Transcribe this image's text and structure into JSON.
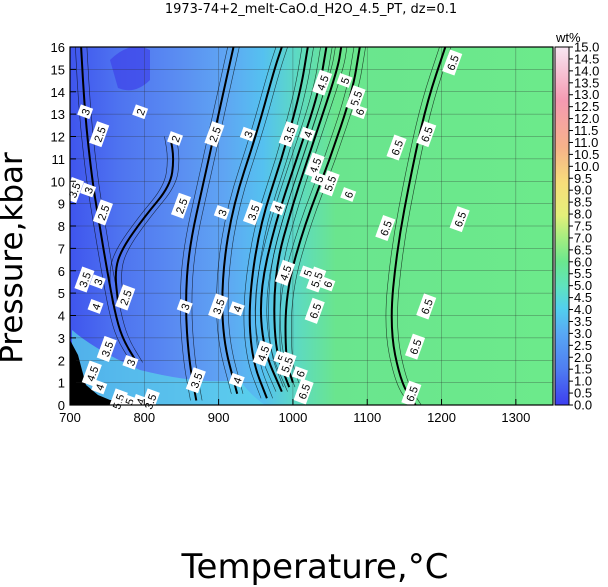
{
  "chart_data": {
    "type": "heatmap",
    "title": "1973-74+2_melt-CaO.d_H2O_4.5_PT, dz=0.1",
    "xlabel": "Temperature,°C",
    "ylabel": "Pressure,kbar",
    "xlim": [
      700,
      1350
    ],
    "ylim": [
      0,
      16
    ],
    "x_ticks": [
      700,
      800,
      900,
      1000,
      1100,
      1200,
      1300
    ],
    "y_ticks": [
      0,
      1,
      2,
      3,
      4,
      5,
      6,
      7,
      8,
      9,
      10,
      11,
      12,
      13,
      14,
      15,
      16
    ],
    "grid": true,
    "colorbar": {
      "label": "wt%",
      "range": [
        0.0,
        15.0
      ],
      "ticks": [
        "0.0",
        "0.5",
        "1.0",
        "1.5",
        "2.0",
        "2.5",
        "3.0",
        "3.5",
        "4.0",
        "4.5",
        "5.0",
        "5.5",
        "6.0",
        "6.5",
        "7.0",
        "7.5",
        "8.0",
        "8.5",
        "9.0",
        "9.5",
        "10.0",
        "10.5",
        "11.0",
        "11.5",
        "12.0",
        "12.5",
        "13.0",
        "13.5",
        "14.0",
        "14.5",
        "15.0"
      ],
      "placement": "right"
    },
    "contours": [
      {
        "level": 2.5,
        "points": [
          [
            765,
            4.5
          ],
          [
            760,
            6
          ],
          [
            770,
            7
          ],
          [
            800,
            8.4
          ],
          [
            835,
            9.8
          ],
          [
            840,
            11
          ],
          [
            835,
            12
          ]
        ]
      },
      {
        "level": 3,
        "points": [
          [
            790,
            1.9
          ],
          [
            770,
            3
          ],
          [
            760,
            4.2
          ],
          [
            750,
            6
          ],
          [
            740,
            8
          ],
          [
            730,
            10
          ],
          [
            720,
            13
          ],
          [
            715,
            16
          ]
        ]
      },
      {
        "level": 3.5,
        "points": [
          [
            870,
            0.2
          ],
          [
            860,
            2
          ],
          [
            855,
            4.5
          ],
          [
            860,
            7
          ],
          [
            880,
            10
          ],
          [
            900,
            13
          ],
          [
            920,
            16
          ]
        ]
      },
      {
        "level": 4,
        "points": [
          [
            925,
            0.5
          ],
          [
            905,
            3
          ],
          [
            905,
            6
          ],
          [
            920,
            9
          ],
          [
            950,
            12
          ],
          [
            975,
            15
          ],
          [
            985,
            16
          ]
        ]
      },
      {
        "level": 4.5,
        "points": [
          [
            965,
            0.3
          ],
          [
            945,
            2
          ],
          [
            940,
            4.5
          ],
          [
            955,
            8
          ],
          [
            985,
            11
          ],
          [
            1010,
            14
          ],
          [
            1020,
            16
          ]
        ]
      },
      {
        "level": 5,
        "points": [
          [
            985,
            0.6
          ],
          [
            960,
            2.5
          ],
          [
            955,
            5
          ],
          [
            975,
            8
          ],
          [
            1005,
            11
          ],
          [
            1035,
            14
          ],
          [
            1045,
            16
          ]
        ]
      },
      {
        "level": 5.5,
        "points": [
          [
            995,
            0.8
          ],
          [
            975,
            2.5
          ],
          [
            975,
            6
          ],
          [
            1000,
            9
          ],
          [
            1030,
            12
          ],
          [
            1060,
            15
          ],
          [
            1065,
            16
          ]
        ]
      },
      {
        "level": 6,
        "points": [
          [
            1000,
            1
          ],
          [
            990,
            2
          ],
          [
            990,
            5
          ],
          [
            1015,
            8
          ],
          [
            1050,
            11
          ],
          [
            1080,
            14
          ],
          [
            1090,
            16
          ]
        ]
      },
      {
        "level": 6.5,
        "points": [
          [
            1165,
            0
          ],
          [
            1145,
            1
          ],
          [
            1130,
            3.5
          ],
          [
            1140,
            7
          ],
          [
            1160,
            10.5
          ],
          [
            1180,
            13.5
          ],
          [
            1205,
            16
          ]
        ]
      }
    ],
    "contour_labels": [
      {
        "text": "3",
        "x": 721,
        "y": 13.1
      },
      {
        "text": "2.5",
        "x": 740,
        "y": 12.1
      },
      {
        "text": "2",
        "x": 795,
        "y": 13.1
      },
      {
        "text": "2",
        "x": 842,
        "y": 11.9
      },
      {
        "text": "2.5",
        "x": 895,
        "y": 12.1
      },
      {
        "text": "3",
        "x": 940,
        "y": 12.1
      },
      {
        "text": "3.5",
        "x": 995,
        "y": 12.1
      },
      {
        "text": "4",
        "x": 1020,
        "y": 12.1
      },
      {
        "text": "4.5",
        "x": 1040,
        "y": 14.4
      },
      {
        "text": "5",
        "x": 1070,
        "y": 14.5
      },
      {
        "text": "5.5",
        "x": 1085,
        "y": 13.7
      },
      {
        "text": "6",
        "x": 1090,
        "y": 13.1
      },
      {
        "text": "6.5",
        "x": 1215,
        "y": 15.3
      },
      {
        "text": "6.5",
        "x": 1180,
        "y": 12.1
      },
      {
        "text": "3.5",
        "x": 706,
        "y": 9.6
      },
      {
        "text": "3",
        "x": 725,
        "y": 9.6
      },
      {
        "text": "2.5",
        "x": 745,
        "y": 8.6
      },
      {
        "text": "2.5",
        "x": 850,
        "y": 8.9
      },
      {
        "text": "3",
        "x": 905,
        "y": 8.6
      },
      {
        "text": "3.5",
        "x": 947,
        "y": 8.6
      },
      {
        "text": "4",
        "x": 980,
        "y": 8.8
      },
      {
        "text": "4.5",
        "x": 1030,
        "y": 10.7
      },
      {
        "text": "5",
        "x": 1035,
        "y": 10.1
      },
      {
        "text": "5.5",
        "x": 1050,
        "y": 9.9
      },
      {
        "text": "6",
        "x": 1075,
        "y": 9.4
      },
      {
        "text": "6.5",
        "x": 1140,
        "y": 11.5
      },
      {
        "text": "6.5",
        "x": 1125,
        "y": 7.9
      },
      {
        "text": "6.5",
        "x": 1225,
        "y": 8.3
      },
      {
        "text": "3.5",
        "x": 720,
        "y": 5.6
      },
      {
        "text": "3",
        "x": 738,
        "y": 5.5
      },
      {
        "text": "2.5",
        "x": 775,
        "y": 4.8
      },
      {
        "text": "4.5",
        "x": 990,
        "y": 5.9
      },
      {
        "text": "5",
        "x": 1020,
        "y": 5.9
      },
      {
        "text": "5.5",
        "x": 1032,
        "y": 5.6
      },
      {
        "text": "6",
        "x": 1047,
        "y": 5.4
      },
      {
        "text": "6.5",
        "x": 1030,
        "y": 4.2
      },
      {
        "text": "4",
        "x": 735,
        "y": 4.4
      },
      {
        "text": "3",
        "x": 855,
        "y": 4.4
      },
      {
        "text": "3.5",
        "x": 900,
        "y": 4.4
      },
      {
        "text": "4",
        "x": 925,
        "y": 4.3
      },
      {
        "text": "6.5",
        "x": 1180,
        "y": 4.4
      },
      {
        "text": "6.5",
        "x": 1165,
        "y": 2.6
      },
      {
        "text": "3.5",
        "x": 750,
        "y": 2.5
      },
      {
        "text": "3",
        "x": 782,
        "y": 1.9
      },
      {
        "text": "4.5",
        "x": 960,
        "y": 2.3
      },
      {
        "text": "5",
        "x": 985,
        "y": 2.1
      },
      {
        "text": "5.5",
        "x": 992,
        "y": 1.8
      },
      {
        "text": "6",
        "x": 1010,
        "y": 1.4
      },
      {
        "text": "4.5",
        "x": 730,
        "y": 1.4
      },
      {
        "text": "3.5",
        "x": 870,
        "y": 1.1
      },
      {
        "text": "4",
        "x": 925,
        "y": 1.1
      },
      {
        "text": "6.5",
        "x": 1015,
        "y": 0.6
      },
      {
        "text": "6.5",
        "x": 1160,
        "y": 0.5
      },
      {
        "text": "4",
        "x": 740,
        "y": 0.8
      },
      {
        "text": "5.5",
        "x": 765,
        "y": 0.15
      },
      {
        "text": "5",
        "x": 780,
        "y": 0.15
      },
      {
        "text": "4",
        "x": 795,
        "y": 0.15
      },
      {
        "text": "3.5",
        "x": 808,
        "y": 0.15
      }
    ]
  }
}
